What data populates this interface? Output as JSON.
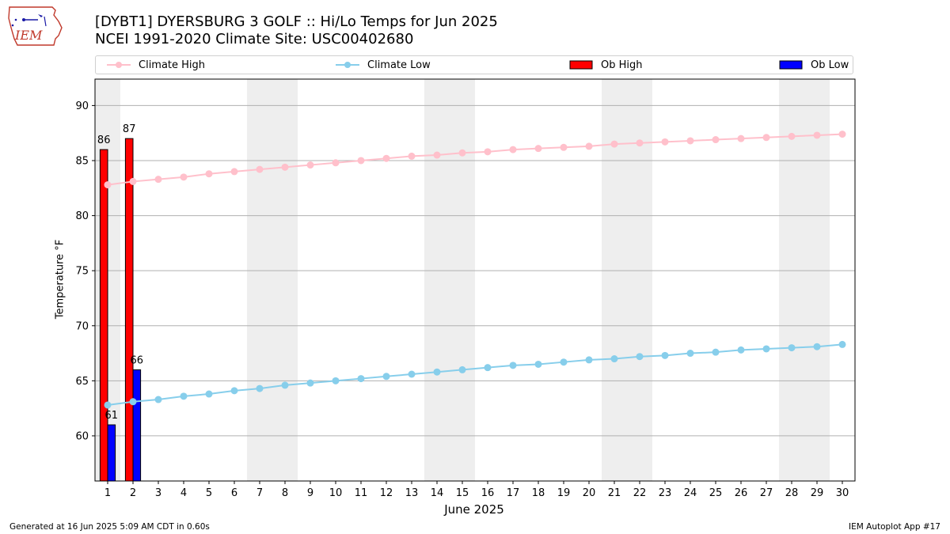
{
  "logo": {
    "text": "IEM"
  },
  "title": {
    "line1": "[DYBT1] DYERSBURG 3 GOLF :: Hi/Lo Temps for Jun 2025",
    "line2": "NCEI 1991-2020 Climate Site: USC00402680"
  },
  "footer": {
    "left": "Generated at 16 Jun 2025 5:09 AM CDT in 0.60s",
    "right": "IEM Autoplot App #17"
  },
  "legend": [
    {
      "label": "Climate High",
      "type": "line",
      "color": "#ffc0cb"
    },
    {
      "label": "Climate Low",
      "type": "line",
      "color": "#87ceeb"
    },
    {
      "label": "Ob High",
      "type": "bar",
      "color": "#ff0000"
    },
    {
      "label": "Ob Low",
      "type": "bar",
      "color": "#0000ff"
    }
  ],
  "chart_data": {
    "type": "bar",
    "xlabel": "June 2025",
    "ylabel": "Temperature °F",
    "xlim": [
      0.5,
      30.5
    ],
    "ylim": [
      55.9,
      92.4
    ],
    "yticks": [
      60,
      65,
      70,
      75,
      80,
      85,
      90
    ],
    "x": [
      1,
      2,
      3,
      4,
      5,
      6,
      7,
      8,
      9,
      10,
      11,
      12,
      13,
      14,
      15,
      16,
      17,
      18,
      19,
      20,
      21,
      22,
      23,
      24,
      25,
      26,
      27,
      28,
      29,
      30
    ],
    "weekend_shading": [
      [
        0.5,
        1.5
      ],
      [
        6.5,
        8.5
      ],
      [
        13.5,
        15.5
      ],
      [
        20.5,
        22.5
      ],
      [
        27.5,
        29.5
      ]
    ],
    "grid": "horizontal",
    "series": [
      {
        "name": "Climate High",
        "kind": "line",
        "color": "#ffc0cb",
        "values": [
          82.8,
          83.1,
          83.3,
          83.5,
          83.8,
          84.0,
          84.2,
          84.4,
          84.6,
          84.8,
          85.0,
          85.2,
          85.4,
          85.5,
          85.7,
          85.8,
          86.0,
          86.1,
          86.2,
          86.3,
          86.5,
          86.6,
          86.7,
          86.8,
          86.9,
          87.0,
          87.1,
          87.2,
          87.3,
          87.4
        ]
      },
      {
        "name": "Climate Low",
        "kind": "line",
        "color": "#87ceeb",
        "values": [
          62.8,
          63.1,
          63.3,
          63.6,
          63.8,
          64.1,
          64.3,
          64.6,
          64.8,
          65.0,
          65.2,
          65.4,
          65.6,
          65.8,
          66.0,
          66.2,
          66.4,
          66.5,
          66.7,
          66.9,
          67.0,
          67.2,
          67.3,
          67.5,
          67.6,
          67.8,
          67.9,
          68.0,
          68.1,
          68.3
        ]
      },
      {
        "name": "Ob High",
        "kind": "bar",
        "color": "#ff0000",
        "x": [
          1,
          2
        ],
        "values": [
          86,
          87
        ],
        "labels": [
          "86",
          "87"
        ]
      },
      {
        "name": "Ob Low",
        "kind": "bar",
        "color": "#0000ff",
        "x": [
          1,
          2
        ],
        "values": [
          61,
          66
        ],
        "labels": [
          "61",
          "66"
        ]
      }
    ]
  }
}
